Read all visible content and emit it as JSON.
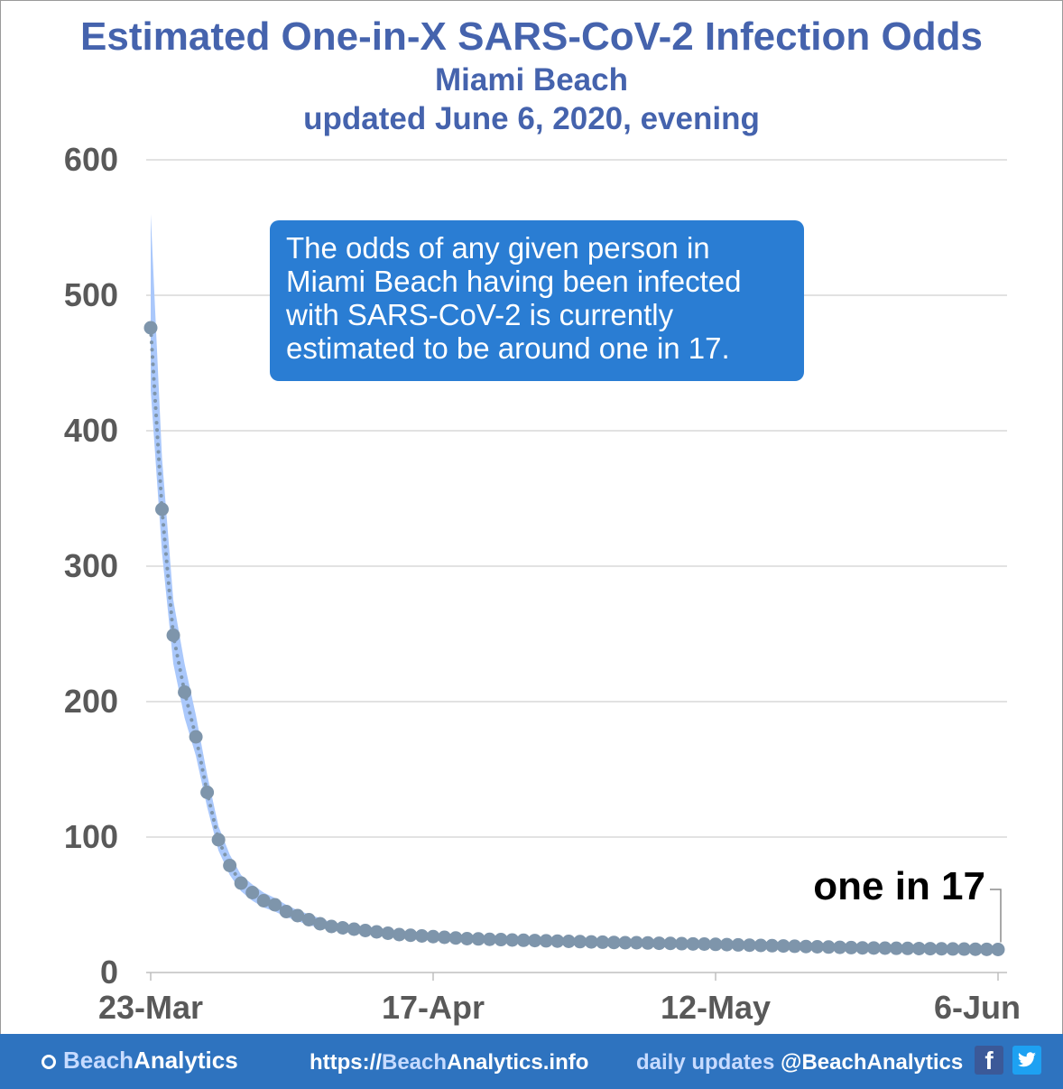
{
  "chart_data": {
    "type": "line",
    "title": "Estimated One-in-X SARS-CoV-2 Infection Odds",
    "subtitle": "Miami Beach",
    "updated": "updated June 6, 2020, evening",
    "xlabel": "",
    "ylabel": "",
    "ylim": [
      0,
      600
    ],
    "yticks": [
      "0",
      "100",
      "200",
      "300",
      "400",
      "500",
      "600"
    ],
    "xticks": [
      "23-Mar",
      "17-Apr",
      "12-May",
      "6-Jun"
    ],
    "grid": true,
    "x_start": "2020-03-23",
    "x_end": "2020-06-06",
    "series": [
      {
        "values": [
          476,
          null,
          null,
          null,
          null,
          null,
          null,
          null,
          null,
          null,
          null,
          null,
          null,
          null,
          null,
          null,
          null,
          null,
          null,
          null,
          null,
          null,
          null,
          null,
          null,
          null,
          null,
          null,
          null,
          null,
          null,
          null,
          null,
          null,
          null,
          null,
          null,
          null,
          null,
          null,
          null,
          null,
          null,
          null,
          null,
          null,
          null,
          null,
          null,
          null,
          null,
          null,
          null,
          null,
          null,
          null,
          null,
          null,
          null,
          null,
          null,
          null,
          null,
          null,
          null,
          null,
          null,
          null,
          null,
          null,
          null,
          null,
          null,
          null,
          17
        ]
      }
    ],
    "points": [
      [
        "2020-03-23",
        476
      ],
      [
        "2020-03-24",
        342
      ],
      [
        "2020-03-25",
        249
      ],
      [
        "2020-03-26",
        207
      ],
      [
        "2020-03-27",
        174
      ],
      [
        "2020-03-28",
        133
      ],
      [
        "2020-03-29",
        98
      ],
      [
        "2020-03-30",
        79
      ],
      [
        "2020-03-31",
        66
      ],
      [
        "2020-04-01",
        59
      ],
      [
        "2020-04-02",
        53
      ],
      [
        "2020-04-03",
        50
      ],
      [
        "2020-04-04",
        45
      ],
      [
        "2020-04-05",
        42
      ],
      [
        "2020-04-06",
        39
      ],
      [
        "2020-04-07",
        36
      ],
      [
        "2020-04-08",
        34
      ],
      [
        "2020-04-09",
        33
      ],
      [
        "2020-04-10",
        32
      ],
      [
        "2020-04-11",
        31
      ],
      [
        "2020-04-12",
        30
      ],
      [
        "2020-04-13",
        29
      ],
      [
        "2020-04-14",
        28
      ],
      [
        "2020-04-15",
        27.5
      ],
      [
        "2020-04-16",
        27
      ],
      [
        "2020-04-17",
        26.5
      ],
      [
        "2020-04-18",
        26
      ],
      [
        "2020-04-19",
        25.5
      ],
      [
        "2020-04-20",
        25
      ],
      [
        "2020-04-21",
        24.8
      ],
      [
        "2020-04-22",
        24.5
      ],
      [
        "2020-04-23",
        24.3
      ],
      [
        "2020-04-24",
        24
      ],
      [
        "2020-04-25",
        23.8
      ],
      [
        "2020-04-26",
        23.6
      ],
      [
        "2020-04-27",
        23.4
      ],
      [
        "2020-04-28",
        23.2
      ],
      [
        "2020-04-29",
        23
      ],
      [
        "2020-04-30",
        22.8
      ],
      [
        "2020-05-01",
        22.6
      ],
      [
        "2020-05-02",
        22.4
      ],
      [
        "2020-05-03",
        22.2
      ],
      [
        "2020-05-04",
        22
      ],
      [
        "2020-05-05",
        22
      ],
      [
        "2020-05-06",
        21.8
      ],
      [
        "2020-05-07",
        21.6
      ],
      [
        "2020-05-08",
        21.5
      ],
      [
        "2020-05-09",
        21.3
      ],
      [
        "2020-05-10",
        21.1
      ],
      [
        "2020-05-11",
        21
      ],
      [
        "2020-05-12",
        20.8
      ],
      [
        "2020-05-13",
        20.6
      ],
      [
        "2020-05-14",
        20.4
      ],
      [
        "2020-05-15",
        20.2
      ],
      [
        "2020-05-16",
        20
      ],
      [
        "2020-05-17",
        19.8
      ],
      [
        "2020-05-18",
        19.6
      ],
      [
        "2020-05-19",
        19.4
      ],
      [
        "2020-05-20",
        19.2
      ],
      [
        "2020-05-21",
        19
      ],
      [
        "2020-05-22",
        18.8
      ],
      [
        "2020-05-23",
        18.6
      ],
      [
        "2020-05-24",
        18.4
      ],
      [
        "2020-05-25",
        18.2
      ],
      [
        "2020-05-26",
        18.1
      ],
      [
        "2020-05-27",
        18
      ],
      [
        "2020-05-28",
        17.9
      ],
      [
        "2020-05-29",
        17.8
      ],
      [
        "2020-05-30",
        17.7
      ],
      [
        "2020-05-31",
        17.6
      ],
      [
        "2020-06-01",
        17.5
      ],
      [
        "2020-06-02",
        17.4
      ],
      [
        "2020-06-03",
        17.3
      ],
      [
        "2020-06-04",
        17.2
      ],
      [
        "2020-06-05",
        17.1
      ],
      [
        "2020-06-06",
        17
      ]
    ],
    "band": [
      [
        "2020-03-23",
        560,
        430
      ],
      [
        "2020-03-24",
        380,
        310
      ],
      [
        "2020-03-25",
        275,
        228
      ],
      [
        "2020-03-26",
        228,
        188
      ],
      [
        "2020-03-27",
        190,
        160
      ],
      [
        "2020-03-28",
        146,
        122
      ],
      [
        "2020-03-29",
        108,
        90
      ],
      [
        "2020-03-30",
        87,
        72
      ],
      [
        "2020-03-31",
        72,
        60
      ],
      [
        "2020-04-01",
        65,
        53
      ],
      [
        "2020-04-02",
        59,
        48
      ],
      [
        "2020-04-03",
        55,
        45
      ],
      [
        "2020-04-04",
        50,
        41
      ],
      [
        "2020-04-05",
        46,
        38
      ],
      [
        "2020-04-06",
        43,
        35
      ],
      [
        "2020-04-07",
        40,
        33
      ],
      [
        "2020-04-08",
        37,
        31
      ],
      [
        "2020-04-09",
        36,
        30
      ],
      [
        "2020-04-10",
        35,
        29
      ],
      [
        "2020-04-15",
        30,
        25
      ],
      [
        "2020-04-20",
        27.5,
        22.5
      ],
      [
        "2020-04-30",
        25,
        20.5
      ],
      [
        "2020-05-10",
        23.3,
        19
      ],
      [
        "2020-05-20",
        21.2,
        17.2
      ],
      [
        "2020-05-30",
        19.5,
        16
      ],
      [
        "2020-06-06",
        18.8,
        15.3
      ]
    ],
    "colors": {
      "marker": "#7e95ab",
      "band": "#aac8fb",
      "title": "#4563ad",
      "grid": "#d9d9d9",
      "tick": "#595959"
    },
    "annotation": "one in 17"
  },
  "note": "The odds of any given person in Miami Beach having been infected with SARS-CoV-2 is currently estimated to be around one in 17.",
  "footer": {
    "brand_a": "Beach",
    "brand_b": "Analytics",
    "url_a": "https://",
    "url_b": "Beach",
    "url_c": "Analytics.info",
    "daily_a": "daily updates ",
    "daily_b": "@BeachAnalytics",
    "fb_icon": "f",
    "tw_icon": "t"
  }
}
